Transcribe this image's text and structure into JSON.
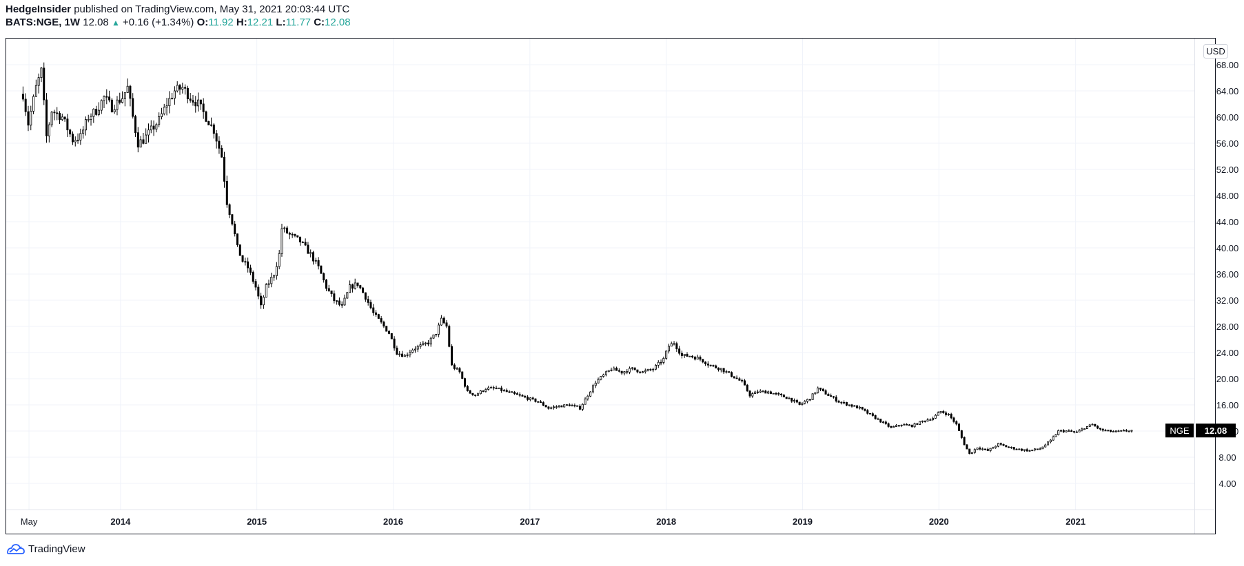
{
  "header": {
    "publisher": "HedgeInsider",
    "published_text": "published on TradingView.com, May 31, 2021 20:03:44 UTC",
    "symbol": "BATS:NGE, 1W",
    "last": "12.08",
    "change": "+0.16 (+1.34%)",
    "o_label": "O:",
    "o_value": "11.92",
    "h_label": "H:",
    "h_value": "12.21",
    "l_label": "L:",
    "l_value": "11.77",
    "c_label": "C:",
    "c_value": "12.08"
  },
  "footer": {
    "brand": "TradingView",
    "icon": "tradingview-logo-icon"
  },
  "colors": {
    "accent": "#26a69a",
    "candle": "#000000",
    "grid": "#f0f3fa",
    "price_tag_bg": "#000000"
  },
  "chart_data": {
    "type": "candlestick",
    "title": "",
    "currency": "USD",
    "ticker_label": "NGE",
    "last_price_label": "12.08",
    "ylim": [
      0,
      72
    ],
    "y_ticks": [
      "4.00",
      "8.00",
      "12.00",
      "16.00",
      "20.00",
      "24.00",
      "28.00",
      "32.00",
      "36.00",
      "40.00",
      "44.00",
      "48.00",
      "52.00",
      "56.00",
      "60.00",
      "64.00",
      "68.00"
    ],
    "x_ticks": [
      {
        "label": "May",
        "date": "2013-05-01"
      },
      {
        "label": "2014",
        "date": "2014-01-01"
      },
      {
        "label": "2015",
        "date": "2015-01-01"
      },
      {
        "label": "2016",
        "date": "2016-01-01"
      },
      {
        "label": "2017",
        "date": "2017-01-01"
      },
      {
        "label": "2018",
        "date": "2018-01-01"
      },
      {
        "label": "2019",
        "date": "2019-01-01"
      },
      {
        "label": "2020",
        "date": "2020-01-01"
      },
      {
        "label": "2021",
        "date": "2021-01-01"
      }
    ],
    "x_range": [
      "2013-03-01",
      "2021-11-15"
    ],
    "grid": true,
    "series": [
      {
        "points": [
          {
            "date": "2013-04-15",
            "close": 63.5
          },
          {
            "date": "2013-04-29",
            "close": 59.0
          },
          {
            "date": "2013-05-20",
            "close": 64.5
          },
          {
            "date": "2013-06-03",
            "close": 67.0
          },
          {
            "date": "2013-06-17",
            "close": 57.0
          },
          {
            "date": "2013-07-01",
            "close": 61.0
          },
          {
            "date": "2013-07-29",
            "close": 60.0
          },
          {
            "date": "2013-08-26",
            "close": 56.5
          },
          {
            "date": "2013-09-16",
            "close": 57.0
          },
          {
            "date": "2013-10-07",
            "close": 60.0
          },
          {
            "date": "2013-10-28",
            "close": 61.0
          },
          {
            "date": "2013-11-18",
            "close": 63.0
          },
          {
            "date": "2013-12-09",
            "close": 61.5
          },
          {
            "date": "2014-01-06",
            "close": 63.0
          },
          {
            "date": "2014-01-20",
            "close": 64.5
          },
          {
            "date": "2014-02-03",
            "close": 60.0
          },
          {
            "date": "2014-02-17",
            "close": 56.0
          },
          {
            "date": "2014-03-03",
            "close": 56.5
          },
          {
            "date": "2014-03-24",
            "close": 58.0
          },
          {
            "date": "2014-04-14",
            "close": 59.5
          },
          {
            "date": "2014-05-05",
            "close": 62.0
          },
          {
            "date": "2014-05-26",
            "close": 64.0
          },
          {
            "date": "2014-06-16",
            "close": 64.5
          },
          {
            "date": "2014-07-07",
            "close": 63.0
          },
          {
            "date": "2014-07-28",
            "close": 62.0
          },
          {
            "date": "2014-08-18",
            "close": 60.0
          },
          {
            "date": "2014-09-08",
            "close": 58.0
          },
          {
            "date": "2014-09-29",
            "close": 54.0
          },
          {
            "date": "2014-10-13",
            "close": 47.0
          },
          {
            "date": "2014-10-27",
            "close": 44.0
          },
          {
            "date": "2014-11-10",
            "close": 40.0
          },
          {
            "date": "2014-11-24",
            "close": 38.0
          },
          {
            "date": "2014-12-08",
            "close": 37.0
          },
          {
            "date": "2014-12-29",
            "close": 34.0
          },
          {
            "date": "2015-01-12",
            "close": 31.0
          },
          {
            "date": "2015-01-26",
            "close": 34.0
          },
          {
            "date": "2015-02-16",
            "close": 36.0
          },
          {
            "date": "2015-03-02",
            "close": 39.0
          },
          {
            "date": "2015-03-09",
            "close": 43.0
          },
          {
            "date": "2015-03-30",
            "close": 42.0
          },
          {
            "date": "2015-04-27",
            "close": 41.0
          },
          {
            "date": "2015-05-25",
            "close": 39.0
          },
          {
            "date": "2015-06-15",
            "close": 37.0
          },
          {
            "date": "2015-07-06",
            "close": 34.0
          },
          {
            "date": "2015-07-27",
            "close": 32.0
          },
          {
            "date": "2015-08-17",
            "close": 31.0
          },
          {
            "date": "2015-09-07",
            "close": 34.0
          },
          {
            "date": "2015-09-28",
            "close": 34.5
          },
          {
            "date": "2015-10-19",
            "close": 32.5
          },
          {
            "date": "2015-11-09",
            "close": 30.0
          },
          {
            "date": "2015-11-30",
            "close": 28.5
          },
          {
            "date": "2015-12-21",
            "close": 27.0
          },
          {
            "date": "2016-01-11",
            "close": 24.0
          },
          {
            "date": "2016-02-01",
            "close": 23.5
          },
          {
            "date": "2016-02-22",
            "close": 24.5
          },
          {
            "date": "2016-03-14",
            "close": 25.0
          },
          {
            "date": "2016-04-04",
            "close": 25.5
          },
          {
            "date": "2016-04-25",
            "close": 27.0
          },
          {
            "date": "2016-05-09",
            "close": 29.0
          },
          {
            "date": "2016-05-23",
            "close": 28.0
          },
          {
            "date": "2016-06-06",
            "close": 22.0
          },
          {
            "date": "2016-06-27",
            "close": 21.0
          },
          {
            "date": "2016-07-18",
            "close": 18.0
          },
          {
            "date": "2016-08-08",
            "close": 17.5
          },
          {
            "date": "2016-09-05",
            "close": 18.5
          },
          {
            "date": "2016-10-03",
            "close": 18.5
          },
          {
            "date": "2016-10-31",
            "close": 18.0
          },
          {
            "date": "2016-11-28",
            "close": 17.5
          },
          {
            "date": "2016-12-26",
            "close": 17.0
          },
          {
            "date": "2017-01-23",
            "close": 16.5
          },
          {
            "date": "2017-02-20",
            "close": 15.5
          },
          {
            "date": "2017-03-20",
            "close": 15.8
          },
          {
            "date": "2017-04-17",
            "close": 16.0
          },
          {
            "date": "2017-05-15",
            "close": 15.5
          },
          {
            "date": "2017-06-05",
            "close": 17.5
          },
          {
            "date": "2017-06-26",
            "close": 19.5
          },
          {
            "date": "2017-07-17",
            "close": 20.5
          },
          {
            "date": "2017-08-07",
            "close": 21.5
          },
          {
            "date": "2017-09-04",
            "close": 21.0
          },
          {
            "date": "2017-10-02",
            "close": 21.5
          },
          {
            "date": "2017-10-30",
            "close": 21.0
          },
          {
            "date": "2017-11-27",
            "close": 21.5
          },
          {
            "date": "2017-12-25",
            "close": 23.0
          },
          {
            "date": "2018-01-08",
            "close": 25.0
          },
          {
            "date": "2018-01-22",
            "close": 25.5
          },
          {
            "date": "2018-02-12",
            "close": 23.5
          },
          {
            "date": "2018-03-05",
            "close": 23.5
          },
          {
            "date": "2018-04-02",
            "close": 23.0
          },
          {
            "date": "2018-04-30",
            "close": 22.0
          },
          {
            "date": "2018-05-28",
            "close": 21.5
          },
          {
            "date": "2018-06-25",
            "close": 20.5
          },
          {
            "date": "2018-07-23",
            "close": 19.5
          },
          {
            "date": "2018-08-13",
            "close": 17.5
          },
          {
            "date": "2018-09-03",
            "close": 18.0
          },
          {
            "date": "2018-10-01",
            "close": 18.0
          },
          {
            "date": "2018-10-29",
            "close": 17.5
          },
          {
            "date": "2018-11-26",
            "close": 17.0
          },
          {
            "date": "2018-12-24",
            "close": 16.0
          },
          {
            "date": "2019-01-21",
            "close": 17.0
          },
          {
            "date": "2019-02-11",
            "close": 18.5
          },
          {
            "date": "2019-03-11",
            "close": 17.5
          },
          {
            "date": "2019-04-08",
            "close": 16.5
          },
          {
            "date": "2019-05-06",
            "close": 16.0
          },
          {
            "date": "2019-06-03",
            "close": 15.5
          },
          {
            "date": "2019-07-01",
            "close": 14.5
          },
          {
            "date": "2019-07-29",
            "close": 13.5
          },
          {
            "date": "2019-08-26",
            "close": 12.5
          },
          {
            "date": "2019-09-23",
            "close": 13.0
          },
          {
            "date": "2019-10-21",
            "close": 12.8
          },
          {
            "date": "2019-11-18",
            "close": 13.5
          },
          {
            "date": "2019-12-16",
            "close": 14.0
          },
          {
            "date": "2020-01-06",
            "close": 15.0
          },
          {
            "date": "2020-01-27",
            "close": 14.5
          },
          {
            "date": "2020-02-17",
            "close": 13.0
          },
          {
            "date": "2020-03-09",
            "close": 10.0
          },
          {
            "date": "2020-03-23",
            "close": 8.5
          },
          {
            "date": "2020-04-13",
            "close": 9.5
          },
          {
            "date": "2020-05-11",
            "close": 9.0
          },
          {
            "date": "2020-06-08",
            "close": 10.0
          },
          {
            "date": "2020-07-06",
            "close": 9.5
          },
          {
            "date": "2020-08-03",
            "close": 9.2
          },
          {
            "date": "2020-08-31",
            "close": 9.0
          },
          {
            "date": "2020-09-28",
            "close": 9.3
          },
          {
            "date": "2020-10-26",
            "close": 10.5
          },
          {
            "date": "2020-11-16",
            "close": 12.0
          },
          {
            "date": "2020-12-07",
            "close": 12.0
          },
          {
            "date": "2021-01-04",
            "close": 11.8
          },
          {
            "date": "2021-01-25",
            "close": 12.5
          },
          {
            "date": "2021-02-15",
            "close": 13.0
          },
          {
            "date": "2021-03-08",
            "close": 12.2
          },
          {
            "date": "2021-03-29",
            "close": 12.0
          },
          {
            "date": "2021-04-19",
            "close": 11.9
          },
          {
            "date": "2021-05-10",
            "close": 12.0
          },
          {
            "date": "2021-05-31",
            "close": 12.08
          }
        ]
      }
    ]
  }
}
